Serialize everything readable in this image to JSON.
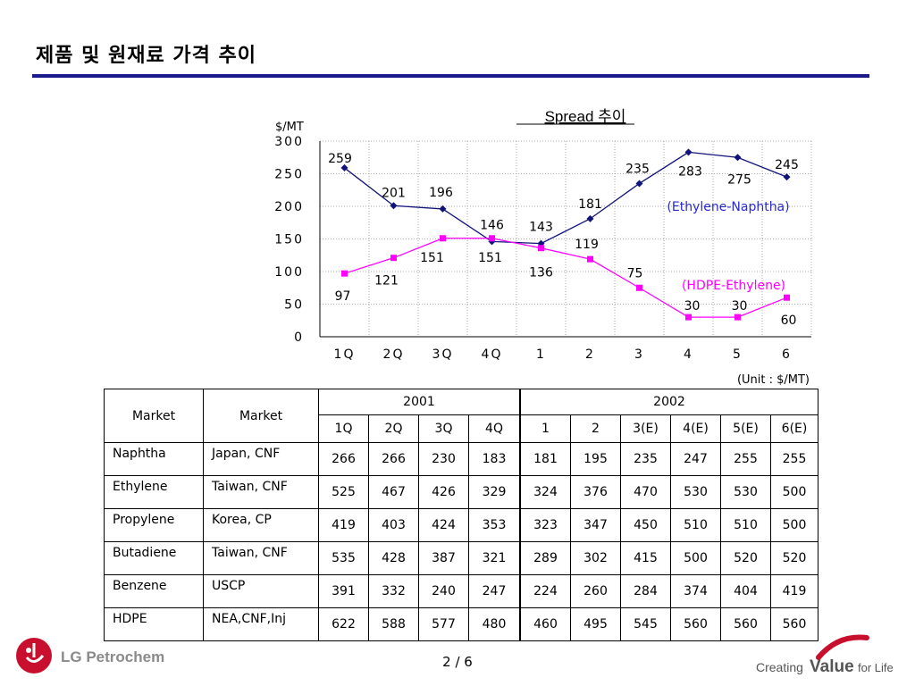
{
  "page": {
    "title": "제품 및 원재료 가격 추이",
    "page_number": "2 / 6"
  },
  "brand": {
    "left_logo_text": "LG Petrochem",
    "right_logo_text_1": "Creating",
    "right_logo_text_2": "Value",
    "right_logo_text_3": "for Life",
    "accent": "#1a1a8c",
    "logo_red": "#c8102e"
  },
  "chart_data": {
    "type": "line",
    "title": "Spread  추이",
    "ylabel": "$/MT",
    "unit_note": "(Unit : $/MT)",
    "categories": [
      "1Q",
      "2Q",
      "3Q",
      "4Q",
      "1",
      "2",
      "3",
      "4",
      "5",
      "6"
    ],
    "ylim": [
      0,
      300
    ],
    "yticks": [
      0,
      50,
      100,
      150,
      200,
      250,
      300
    ],
    "grid": true,
    "series": [
      {
        "name": "(Ethylene-Naphtha)",
        "color": "#10137a",
        "marker": "diamond",
        "values": [
          259,
          201,
          196,
          146,
          143,
          181,
          235,
          283,
          275,
          245
        ]
      },
      {
        "name": "(HDPE-Ethylene)",
        "color": "#ff00ff",
        "marker": "square",
        "values": [
          97,
          121,
          151,
          151,
          136,
          119,
          75,
          30,
          30,
          60
        ]
      }
    ]
  },
  "table": {
    "header_market_1": "Market",
    "header_market_2": "Market",
    "year_2001": "2001",
    "year_2002": "2002",
    "periods": [
      "1Q",
      "2Q",
      "3Q",
      "4Q",
      "1",
      "2",
      "3(E)",
      "4(E)",
      "5(E)",
      "6(E)"
    ],
    "rows": [
      {
        "product": "Naphtha",
        "market": "Japan, CNF",
        "values": [
          "266",
          "266",
          "230",
          "183",
          "181",
          "195",
          "235",
          "247",
          "255",
          "255"
        ]
      },
      {
        "product": "Ethylene",
        "market": "Taiwan, CNF",
        "values": [
          "525",
          "467",
          "426",
          "329",
          "324",
          "376",
          "470",
          "530",
          "530",
          "500"
        ]
      },
      {
        "product": "Propylene",
        "market": "Korea, CP",
        "values": [
          "419",
          "403",
          "424",
          "353",
          "323",
          "347",
          "450",
          "510",
          "510",
          "500"
        ]
      },
      {
        "product": "Butadiene",
        "market": "Taiwan, CNF",
        "values": [
          "535",
          "428",
          "387",
          "321",
          "289",
          "302",
          "415",
          "500",
          "520",
          "520"
        ]
      },
      {
        "product": "Benzene",
        "market": "USCP",
        "values": [
          "391",
          "332",
          "240",
          "247",
          "224",
          "260",
          "284",
          "374",
          "404",
          "419"
        ]
      },
      {
        "product": "HDPE",
        "market": "NEA,CNF,Inj",
        "values": [
          "622",
          "588",
          "577",
          "480",
          "460",
          "495",
          "545",
          "560",
          "560",
          "560"
        ]
      }
    ]
  }
}
